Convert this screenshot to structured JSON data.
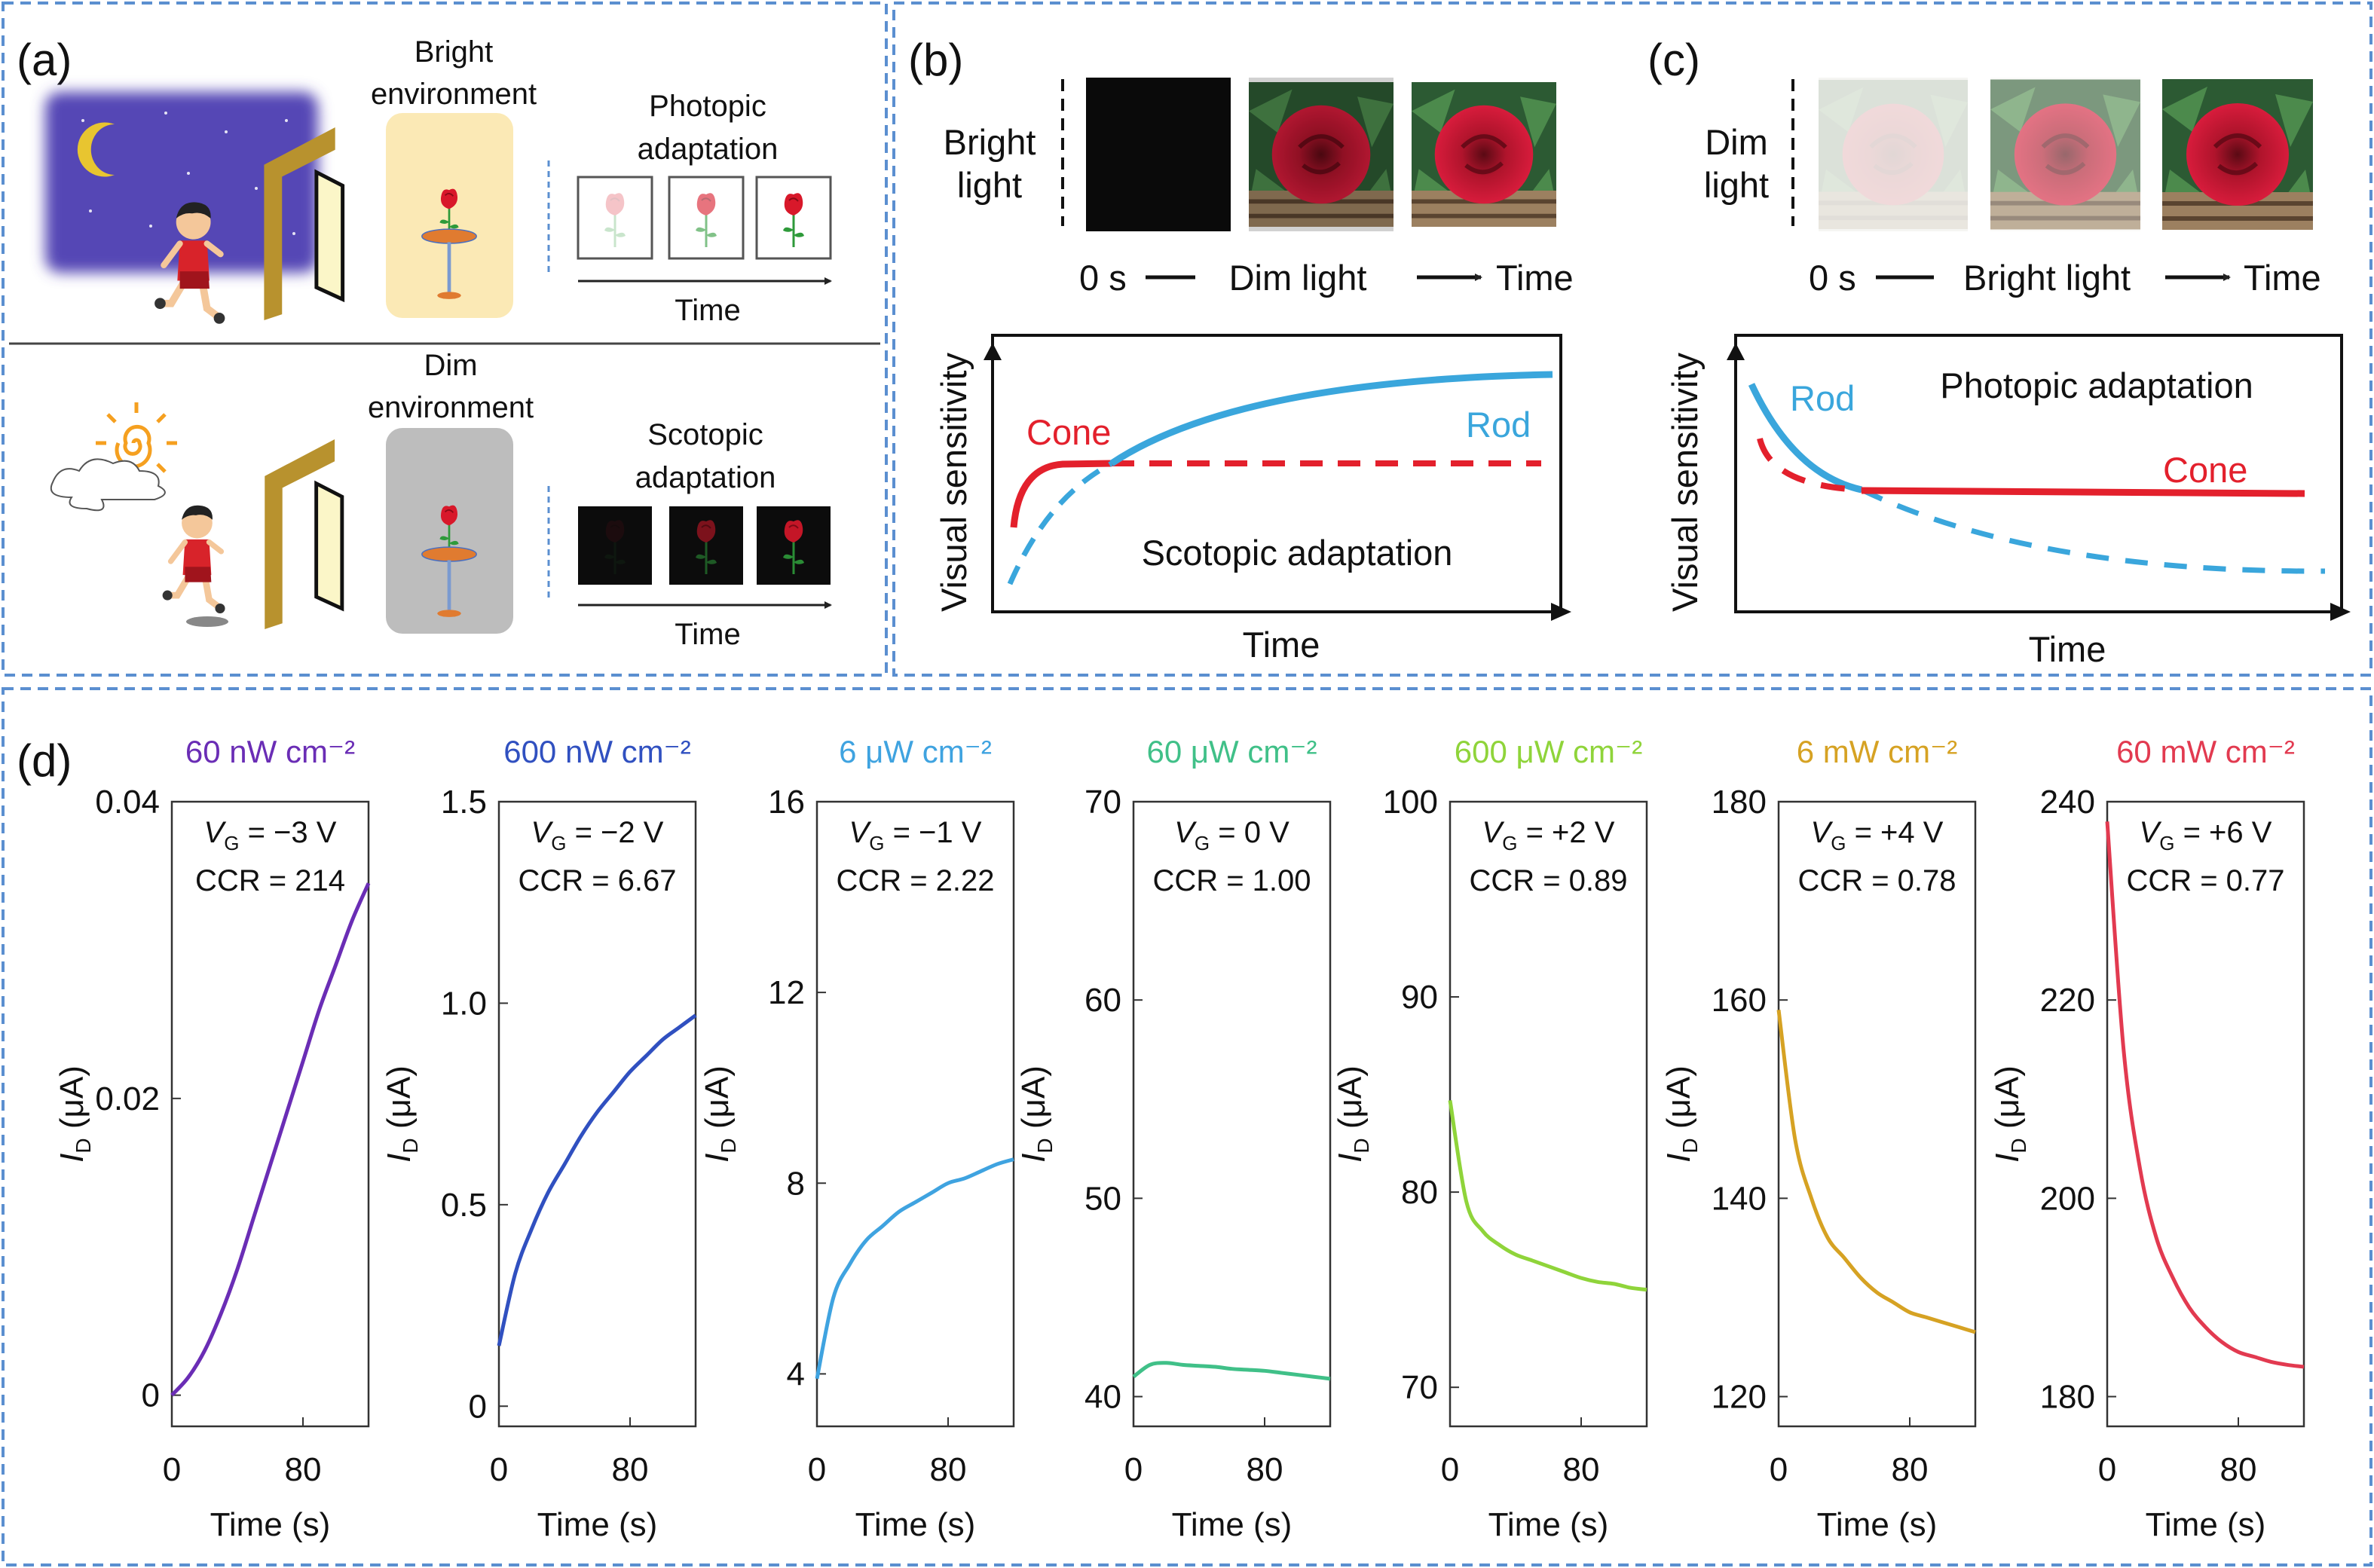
{
  "figure": {
    "panel_a": {
      "label": "(a)",
      "bright_env": [
        "Bright",
        "environment"
      ],
      "photopic": [
        "Photopic",
        "adaptation"
      ],
      "time_top": "Time",
      "dim_env": [
        "Dim",
        "environment"
      ],
      "scotopic": [
        "Scotopic",
        "adaptation"
      ],
      "time_bottom": "Time"
    },
    "panel_b": {
      "label": "(b)",
      "condition": [
        "Bright",
        "light"
      ],
      "timeline": {
        "start": "0 s",
        "phase": "Dim light",
        "end": "Time"
      },
      "ylabel": "Visual sensitivity",
      "xlabel": "Time",
      "cone": "Cone",
      "rod": "Rod",
      "annotation": "Scotopic adaptation"
    },
    "panel_c": {
      "label": "(c)",
      "condition": [
        "Dim",
        "light"
      ],
      "timeline": {
        "start": "0 s",
        "phase": "Bright light",
        "end": "Time"
      },
      "ylabel": "Visual sensitivity",
      "xlabel": "Time",
      "cone": "Cone",
      "rod": "Rod",
      "annotation": "Photopic adaptation"
    },
    "panel_d": {
      "label": "(d)"
    }
  },
  "colors": {
    "panel_border": "#5b8fd0",
    "cone": "#e3202c",
    "rod": "#3aa6dc"
  },
  "chart_data": [
    {
      "type": "line",
      "title": "60 nW cm⁻²",
      "color": "#6a2db5",
      "annotation": {
        "vg_symbol": "V",
        "vg_subscript": "G",
        "vg_value": " = −3 V",
        "ccr": "CCR = 214"
      },
      "xlabel": "Time (s)",
      "ylabel": {
        "symbol": "I",
        "subscript": "D",
        "unit": " (μA)"
      },
      "xlim": [
        0,
        120
      ],
      "ylim": [
        -0.0021,
        0.04
      ],
      "xticks": [
        0,
        80
      ],
      "xtick_labels": [
        "0",
        "80"
      ],
      "yticks": [
        0,
        0.02,
        0.04
      ],
      "ytick_labels": [
        "0",
        "0.02",
        "0.04"
      ],
      "x": [
        0,
        10,
        20,
        30,
        40,
        50,
        60,
        70,
        80,
        90,
        100,
        110,
        120
      ],
      "y": [
        0,
        0.0012,
        0.003,
        0.0055,
        0.0085,
        0.012,
        0.0155,
        0.019,
        0.0225,
        0.026,
        0.029,
        0.032,
        0.0345
      ]
    },
    {
      "type": "line",
      "title": "600 nW cm⁻²",
      "color": "#3050c0",
      "annotation": {
        "vg_symbol": "V",
        "vg_subscript": "G",
        "vg_value": " = −2 V",
        "ccr": "CCR = 6.67"
      },
      "xlabel": "Time (s)",
      "ylabel": {
        "symbol": "I",
        "subscript": "D",
        "unit": " (μA)"
      },
      "xlim": [
        0,
        120
      ],
      "ylim": [
        -0.05,
        1.5
      ],
      "xticks": [
        0,
        80
      ],
      "xtick_labels": [
        "0",
        "80"
      ],
      "yticks": [
        0,
        0.5,
        1.0,
        1.5
      ],
      "ytick_labels": [
        "0",
        "0.5",
        "1.0",
        "1.5"
      ],
      "x": [
        0,
        10,
        20,
        30,
        40,
        50,
        60,
        70,
        80,
        90,
        100,
        110,
        120
      ],
      "y": [
        0.15,
        0.33,
        0.44,
        0.53,
        0.6,
        0.67,
        0.73,
        0.78,
        0.83,
        0.87,
        0.91,
        0.94,
        0.97
      ]
    },
    {
      "type": "line",
      "title": "6 μW cm⁻²",
      "color": "#3fa3e0",
      "annotation": {
        "vg_symbol": "V",
        "vg_subscript": "G",
        "vg_value": " = −1 V",
        "ccr": "CCR = 2.22"
      },
      "xlabel": "Time (s)",
      "ylabel": {
        "symbol": "I",
        "subscript": "D",
        "unit": " (μA)"
      },
      "xlim": [
        0,
        120
      ],
      "ylim": [
        2.9,
        16
      ],
      "xticks": [
        0,
        80
      ],
      "xtick_labels": [
        "0",
        "80"
      ],
      "yticks": [
        4,
        8,
        12,
        16
      ],
      "ytick_labels": [
        "4",
        "8",
        "12",
        "16"
      ],
      "x": [
        0,
        10,
        20,
        30,
        40,
        50,
        60,
        70,
        80,
        90,
        100,
        110,
        120
      ],
      "y": [
        3.9,
        5.6,
        6.3,
        6.8,
        7.1,
        7.4,
        7.6,
        7.8,
        8.0,
        8.1,
        8.25,
        8.4,
        8.5
      ]
    },
    {
      "type": "line",
      "title": "60 μW cm⁻²",
      "color": "#40c088",
      "annotation": {
        "vg_symbol": "V",
        "vg_subscript": "G",
        "vg_value": " = 0 V",
        "ccr": "CCR = 1.00"
      },
      "xlabel": "Time (s)",
      "ylabel": {
        "symbol": "I",
        "subscript": "D",
        "unit": " (μA)"
      },
      "xlim": [
        0,
        120
      ],
      "ylim": [
        38.5,
        70
      ],
      "xticks": [
        0,
        80
      ],
      "xtick_labels": [
        "0",
        "80"
      ],
      "yticks": [
        40,
        50,
        60,
        70
      ],
      "ytick_labels": [
        "40",
        "50",
        "60",
        "70"
      ],
      "x": [
        0,
        10,
        20,
        30,
        40,
        50,
        60,
        70,
        80,
        90,
        100,
        110,
        120
      ],
      "y": [
        41.0,
        41.6,
        41.7,
        41.6,
        41.55,
        41.5,
        41.4,
        41.35,
        41.3,
        41.2,
        41.1,
        41.0,
        40.9
      ]
    },
    {
      "type": "line",
      "title": "600 μW cm⁻²",
      "color": "#8fd43a",
      "annotation": {
        "vg_symbol": "V",
        "vg_subscript": "G",
        "vg_value": " = +2 V",
        "ccr": "CCR = 0.89"
      },
      "xlabel": "Time (s)",
      "ylabel": {
        "symbol": "I",
        "subscript": "D",
        "unit": " (μA)"
      },
      "xlim": [
        0,
        120
      ],
      "ylim": [
        68,
        100
      ],
      "xticks": [
        0,
        80
      ],
      "xtick_labels": [
        "0",
        "80"
      ],
      "yticks": [
        70,
        80,
        90,
        100
      ],
      "ytick_labels": [
        "70",
        "80",
        "90",
        "100"
      ],
      "x": [
        0,
        10,
        20,
        30,
        40,
        50,
        60,
        70,
        80,
        90,
        100,
        110,
        120
      ],
      "y": [
        84.7,
        79.5,
        78.0,
        77.3,
        76.8,
        76.5,
        76.2,
        75.9,
        75.6,
        75.4,
        75.3,
        75.1,
        75.0
      ]
    },
    {
      "type": "line",
      "title": "6 mW cm⁻²",
      "color": "#d6a223",
      "annotation": {
        "vg_symbol": "V",
        "vg_subscript": "G",
        "vg_value": " = +4 V",
        "ccr": "CCR = 0.78"
      },
      "xlabel": "Time (s)",
      "ylabel": {
        "symbol": "I",
        "subscript": "D",
        "unit": " (μA)"
      },
      "xlim": [
        0,
        120
      ],
      "ylim": [
        117,
        180
      ],
      "xticks": [
        0,
        80
      ],
      "xtick_labels": [
        "0",
        "80"
      ],
      "yticks": [
        120,
        140,
        160,
        180
      ],
      "ytick_labels": [
        "120",
        "140",
        "160",
        "180"
      ],
      "x": [
        0,
        10,
        20,
        30,
        40,
        50,
        60,
        70,
        80,
        90,
        100,
        110,
        120
      ],
      "y": [
        159,
        146,
        140,
        136,
        134,
        132,
        130.5,
        129.5,
        128.5,
        128,
        127.5,
        127,
        126.5
      ]
    },
    {
      "type": "line",
      "title": "60 mW cm⁻²",
      "color": "#e23a50",
      "annotation": {
        "vg_symbol": "V",
        "vg_subscript": "G",
        "vg_value": " = +6 V",
        "ccr": "CCR = 0.77"
      },
      "xlabel": "Time (s)",
      "ylabel": {
        "symbol": "I",
        "subscript": "D",
        "unit": " (μA)"
      },
      "xlim": [
        0,
        120
      ],
      "ylim": [
        177,
        240
      ],
      "xticks": [
        0,
        80
      ],
      "xtick_labels": [
        "0",
        "80"
      ],
      "yticks": [
        180,
        200,
        220,
        240
      ],
      "ytick_labels": [
        "180",
        "200",
        "220",
        "240"
      ],
      "x": [
        0,
        10,
        20,
        30,
        40,
        50,
        60,
        70,
        80,
        90,
        100,
        110,
        120
      ],
      "y": [
        238,
        215,
        203,
        196,
        192,
        189,
        187,
        185.5,
        184.5,
        184,
        183.5,
        183.2,
        183
      ]
    }
  ]
}
